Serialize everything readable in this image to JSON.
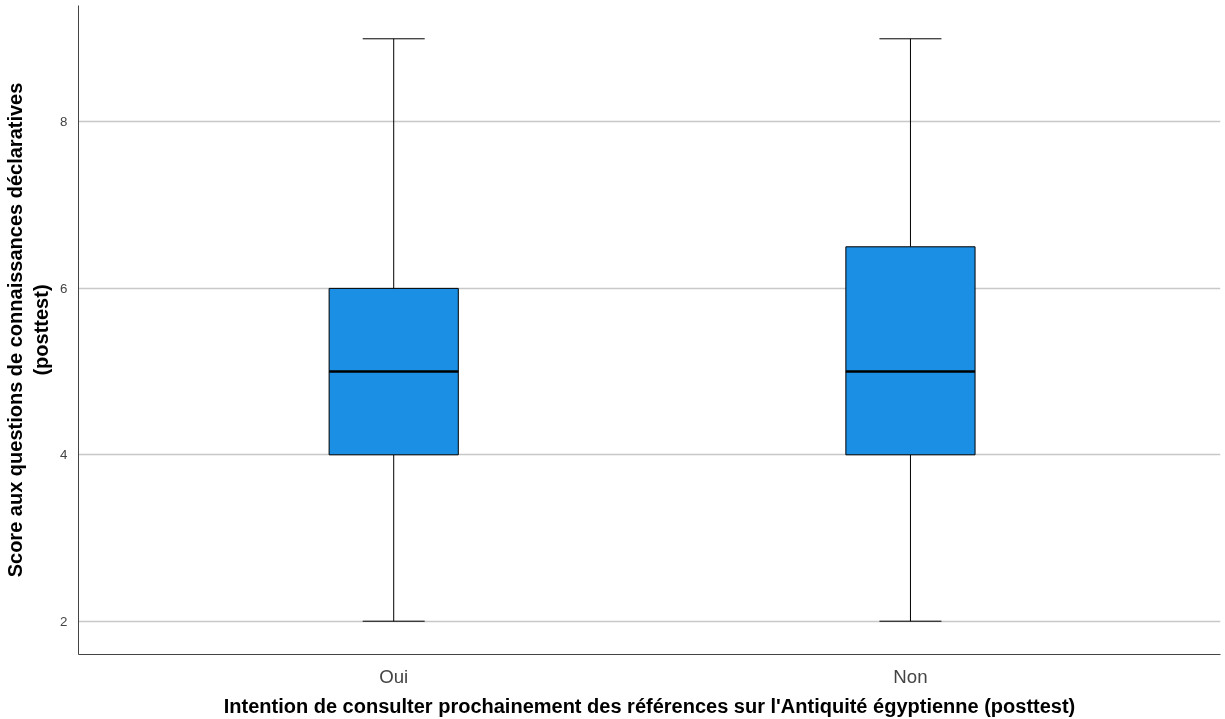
{
  "chart_data": {
    "type": "box",
    "xlabel": "Intention de consulter prochainement des références sur l'Antiquité égyptienne (posttest)",
    "ylabel": "Score aux questions de connaissances déclaratives\n(posttest)",
    "categories": [
      "Oui",
      "Non"
    ],
    "color": "#1a8fe3",
    "boxes": [
      {
        "low": 2,
        "q1": 4,
        "median": 5,
        "q3": 6,
        "high": 9
      },
      {
        "low": 2,
        "q1": 4,
        "median": 5,
        "q3": 6.5,
        "high": 9
      }
    ],
    "ylim": [
      1.6,
      9.4
    ],
    "yticks": [
      2,
      4,
      6,
      8
    ],
    "grid": "y"
  }
}
